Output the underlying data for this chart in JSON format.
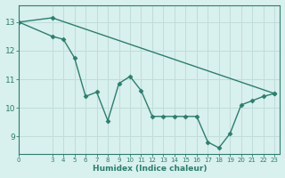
{
  "line1_x": [
    0,
    3,
    4,
    5,
    6,
    7,
    8,
    9,
    10,
    11,
    12,
    13,
    14,
    15,
    16,
    17,
    18,
    19,
    20,
    21,
    22,
    23
  ],
  "line1_y": [
    13.0,
    12.5,
    12.4,
    11.75,
    10.4,
    10.55,
    9.55,
    10.85,
    11.1,
    10.6,
    9.7,
    9.7,
    9.7,
    9.7,
    9.7,
    8.8,
    8.6,
    9.1,
    10.1,
    10.25,
    10.4,
    10.5
  ],
  "line2_x": [
    0,
    3,
    23
  ],
  "line2_y": [
    13.0,
    13.15,
    10.5
  ],
  "line_color": "#2d7d6e",
  "bg_color": "#d8f0ee",
  "grid_color": "#c0ddd9",
  "xlabel": "Humidex (Indice chaleur)",
  "xticks": [
    0,
    3,
    4,
    5,
    6,
    7,
    8,
    9,
    10,
    11,
    12,
    13,
    14,
    15,
    16,
    17,
    18,
    19,
    20,
    21,
    22,
    23
  ],
  "yticks": [
    9,
    10,
    11,
    12,
    13
  ],
  "xlim": [
    0,
    23.5
  ],
  "ylim": [
    8.4,
    13.6
  ],
  "marker": "D",
  "markersize": 2.5,
  "linewidth": 1.0,
  "xlabel_fontsize": 6.5,
  "xtick_fontsize": 5.0,
  "ytick_fontsize": 6.5
}
